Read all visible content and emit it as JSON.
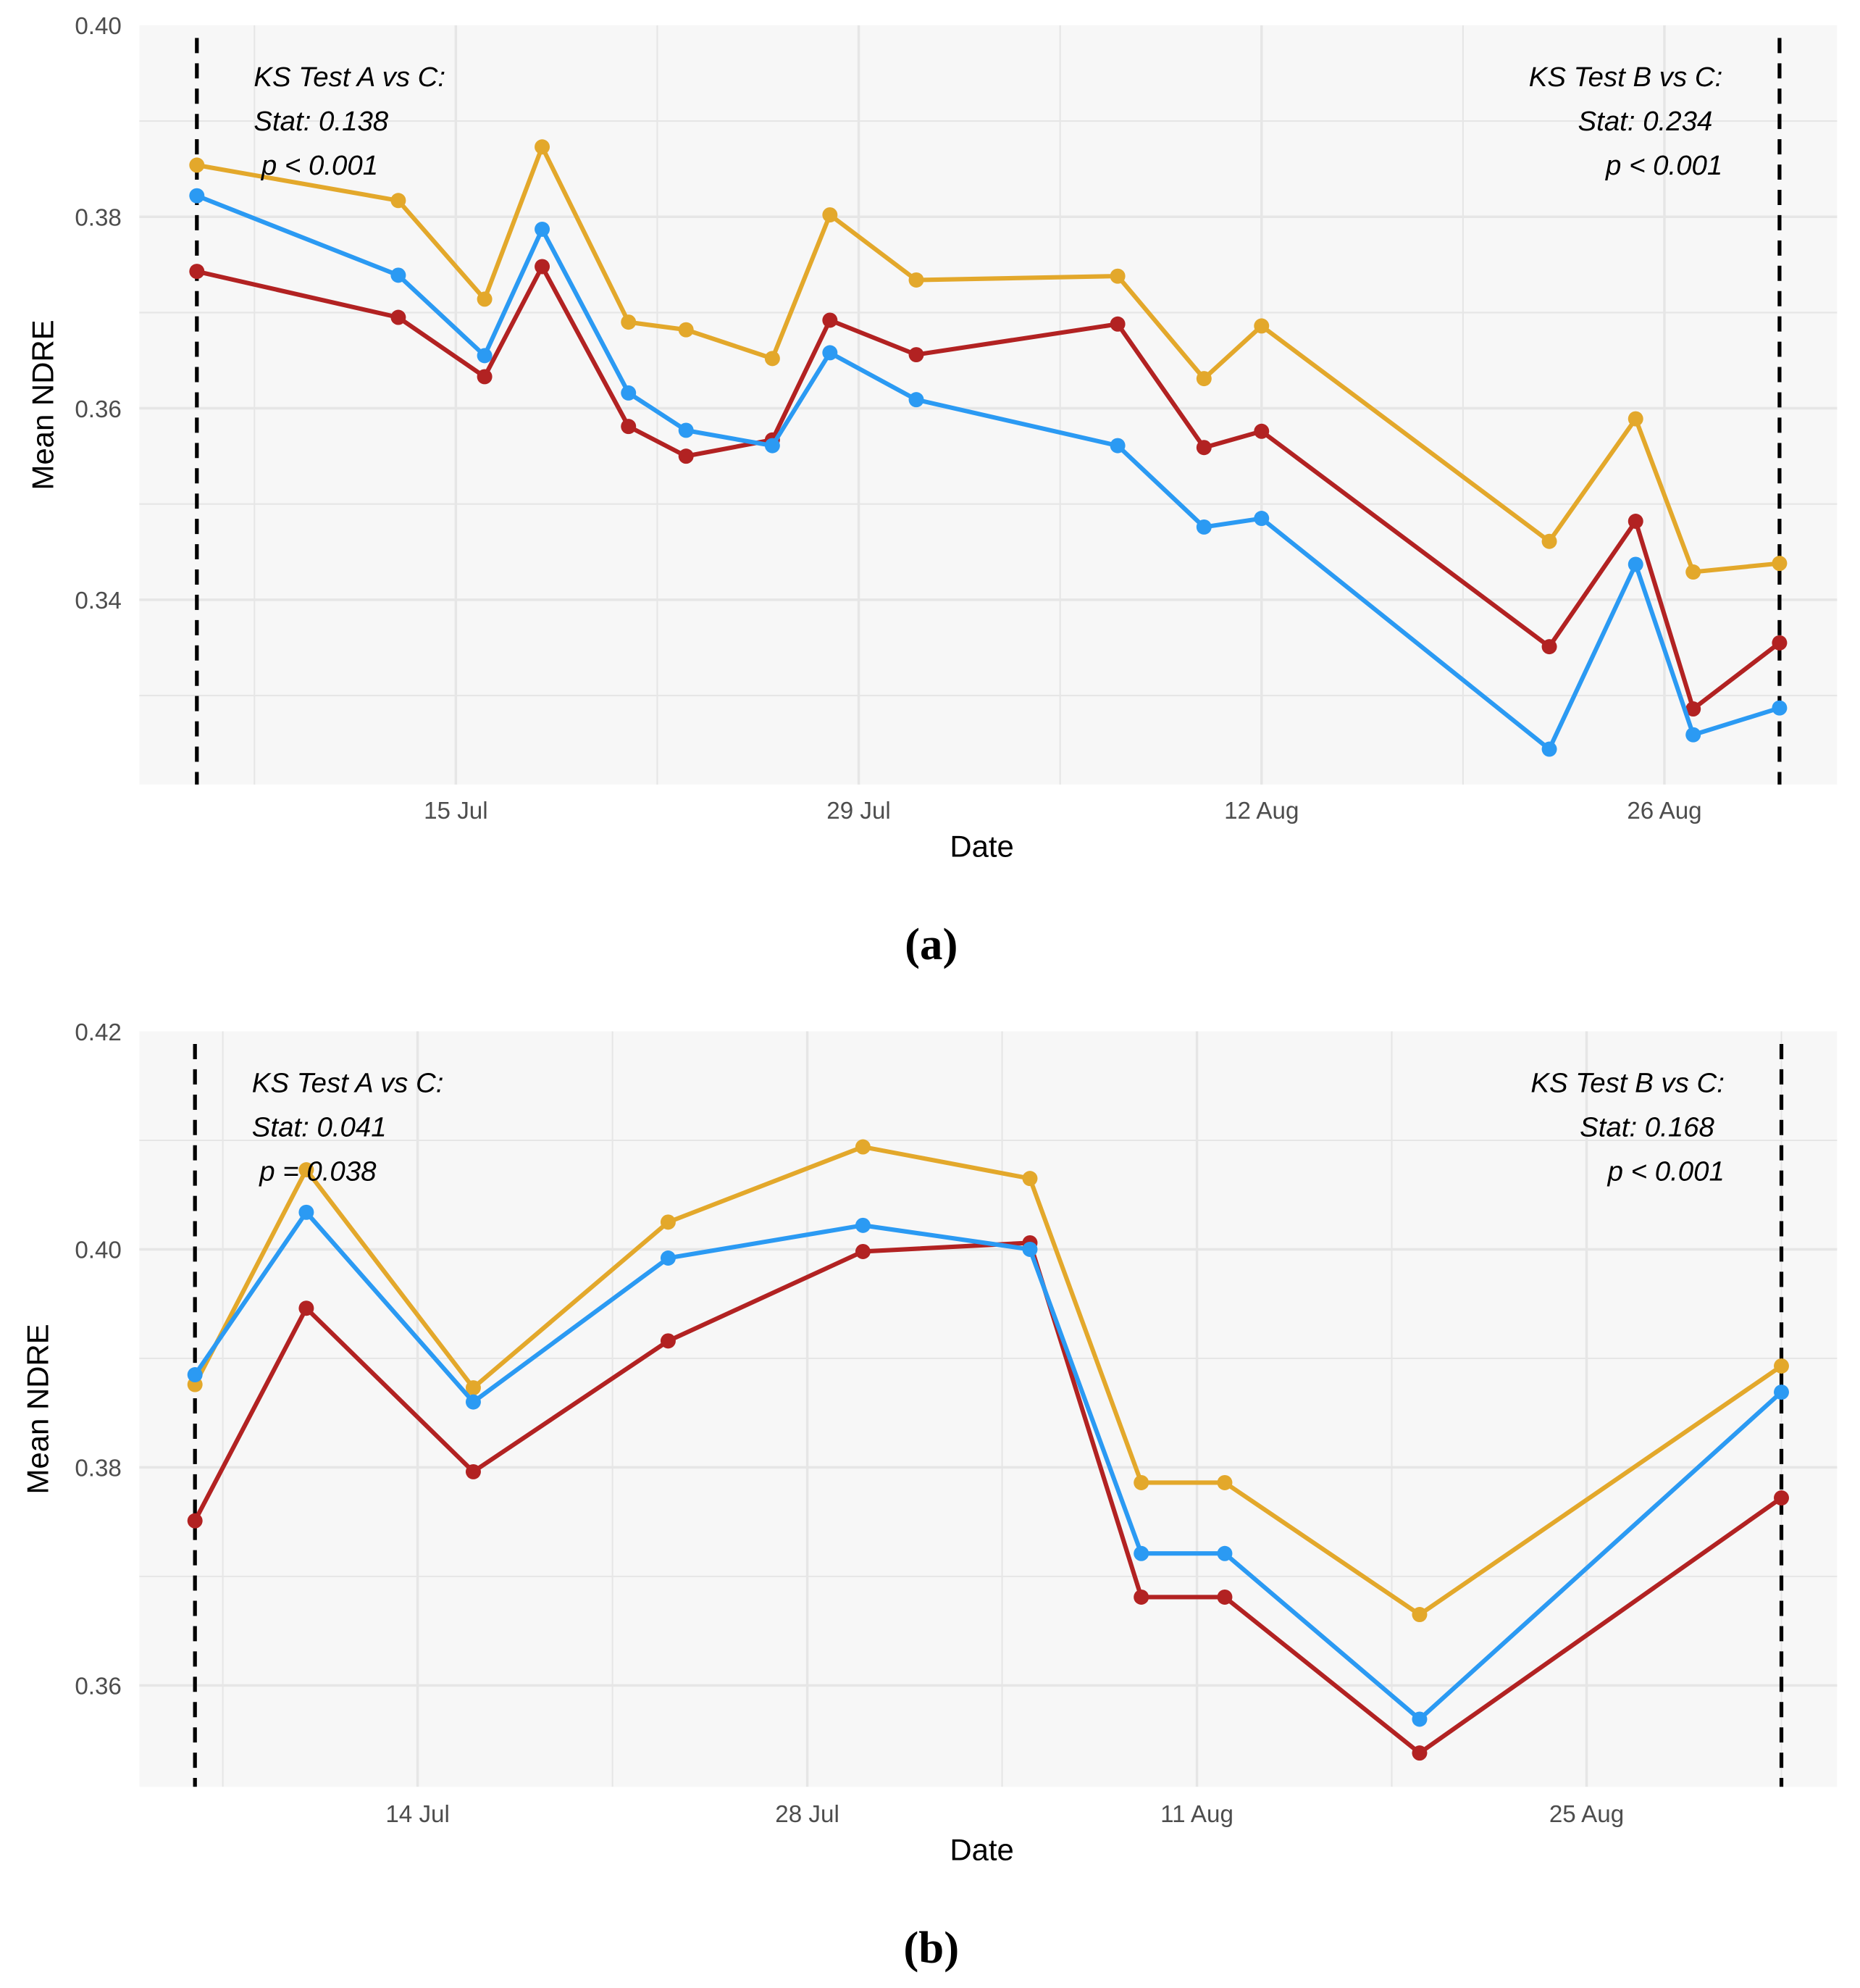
{
  "chart_data": [
    {
      "type": "line",
      "caption": "(a)",
      "xlabel": "Date",
      "ylabel": "Mean NDRE",
      "xlim": [
        "2024-07-04",
        "2024-09-01"
      ],
      "ylim": [
        0.3207,
        0.4
      ],
      "yticks": [
        0.34,
        0.36,
        0.38,
        0.4
      ],
      "ytick_labels": [
        "0.34",
        "0.36",
        "0.38",
        "0.40"
      ],
      "xticks": [
        "2024-07-15",
        "2024-07-29",
        "2024-08-12",
        "2024-08-26"
      ],
      "xtick_labels": [
        "15 Jul",
        "29 Jul",
        "12 Aug",
        "26 Aug"
      ],
      "vlines": [
        "2024-07-06",
        "2024-08-30"
      ],
      "grid": true,
      "annotations": {
        "left": [
          "KS Test A vs C:",
          "Stat: 0.138",
          "p < 0.001"
        ],
        "right": [
          "KS Test B vs C:",
          "Stat: 0.234",
          "p < 0.001"
        ]
      },
      "x": [
        "2024-07-06",
        "2024-07-13",
        "2024-07-16",
        "2024-07-18",
        "2024-07-21",
        "2024-07-23",
        "2024-07-26",
        "2024-07-28",
        "2024-07-31",
        "2024-08-07",
        "2024-08-10",
        "2024-08-12",
        "2024-08-22",
        "2024-08-25",
        "2024-08-27",
        "2024-08-30"
      ],
      "series": [
        {
          "color": "#e3a82b",
          "values": [
            0.3854,
            0.3817,
            0.3714,
            0.3873,
            0.369,
            0.3682,
            0.3652,
            0.3802,
            0.3734,
            0.3738,
            0.3631,
            0.3686,
            0.3461,
            0.3589,
            0.3429,
            0.3438
          ]
        },
        {
          "color": "#b22222",
          "values": [
            0.3743,
            0.3695,
            0.3633,
            0.3748,
            0.3581,
            0.355,
            0.3567,
            0.3692,
            0.3656,
            0.3688,
            0.3559,
            0.3576,
            0.3351,
            0.3482,
            0.3286,
            0.3355
          ]
        },
        {
          "color": "#2b9af3",
          "values": [
            0.3822,
            0.3739,
            0.3655,
            0.3787,
            0.3616,
            0.3577,
            0.3561,
            0.3658,
            0.3609,
            0.3561,
            0.3476,
            0.3485,
            0.3244,
            0.3437,
            0.3259,
            0.3287
          ]
        }
      ]
    },
    {
      "type": "line",
      "caption": "(b)",
      "xlabel": "Date",
      "ylabel": "Mean NDRE",
      "xlim": [
        "2024-07-04",
        "2024-09-03"
      ],
      "ylim": [
        0.3507,
        0.42
      ],
      "yticks": [
        0.36,
        0.38,
        0.4,
        0.42
      ],
      "ytick_labels": [
        "0.36",
        "0.38",
        "0.40",
        "0.42"
      ],
      "xticks": [
        "2024-07-14",
        "2024-07-28",
        "2024-08-11",
        "2024-08-25"
      ],
      "xtick_labels": [
        "14 Jul",
        "28 Jul",
        "11 Aug",
        "25 Aug"
      ],
      "vlines": [
        "2024-07-06",
        "2024-09-01"
      ],
      "grid": true,
      "annotations": {
        "left": [
          "KS Test A vs C:",
          "Stat: 0.041",
          "p = 0.038"
        ],
        "right": [
          "KS Test B vs C:",
          "Stat: 0.168",
          "p < 0.001"
        ]
      },
      "x": [
        "2024-07-06",
        "2024-07-10",
        "2024-07-16",
        "2024-07-23",
        "2024-07-30",
        "2024-08-05",
        "2024-08-09",
        "2024-08-12",
        "2024-08-19",
        "2024-09-01"
      ],
      "series": [
        {
          "color": "#e3a82b",
          "values": [
            0.3876,
            0.4073,
            0.3873,
            0.4025,
            0.4094,
            0.4065,
            0.3786,
            0.3786,
            0.3665,
            0.3893
          ]
        },
        {
          "color": "#b22222",
          "values": [
            0.3751,
            0.3946,
            0.3796,
            0.3916,
            0.3998,
            0.4006,
            0.3681,
            0.3681,
            0.3538,
            0.3772
          ]
        },
        {
          "color": "#2b9af3",
          "values": [
            0.3885,
            0.4034,
            0.386,
            0.3992,
            0.4022,
            0.4,
            0.3721,
            0.3721,
            0.3569,
            0.3869
          ]
        }
      ]
    }
  ]
}
